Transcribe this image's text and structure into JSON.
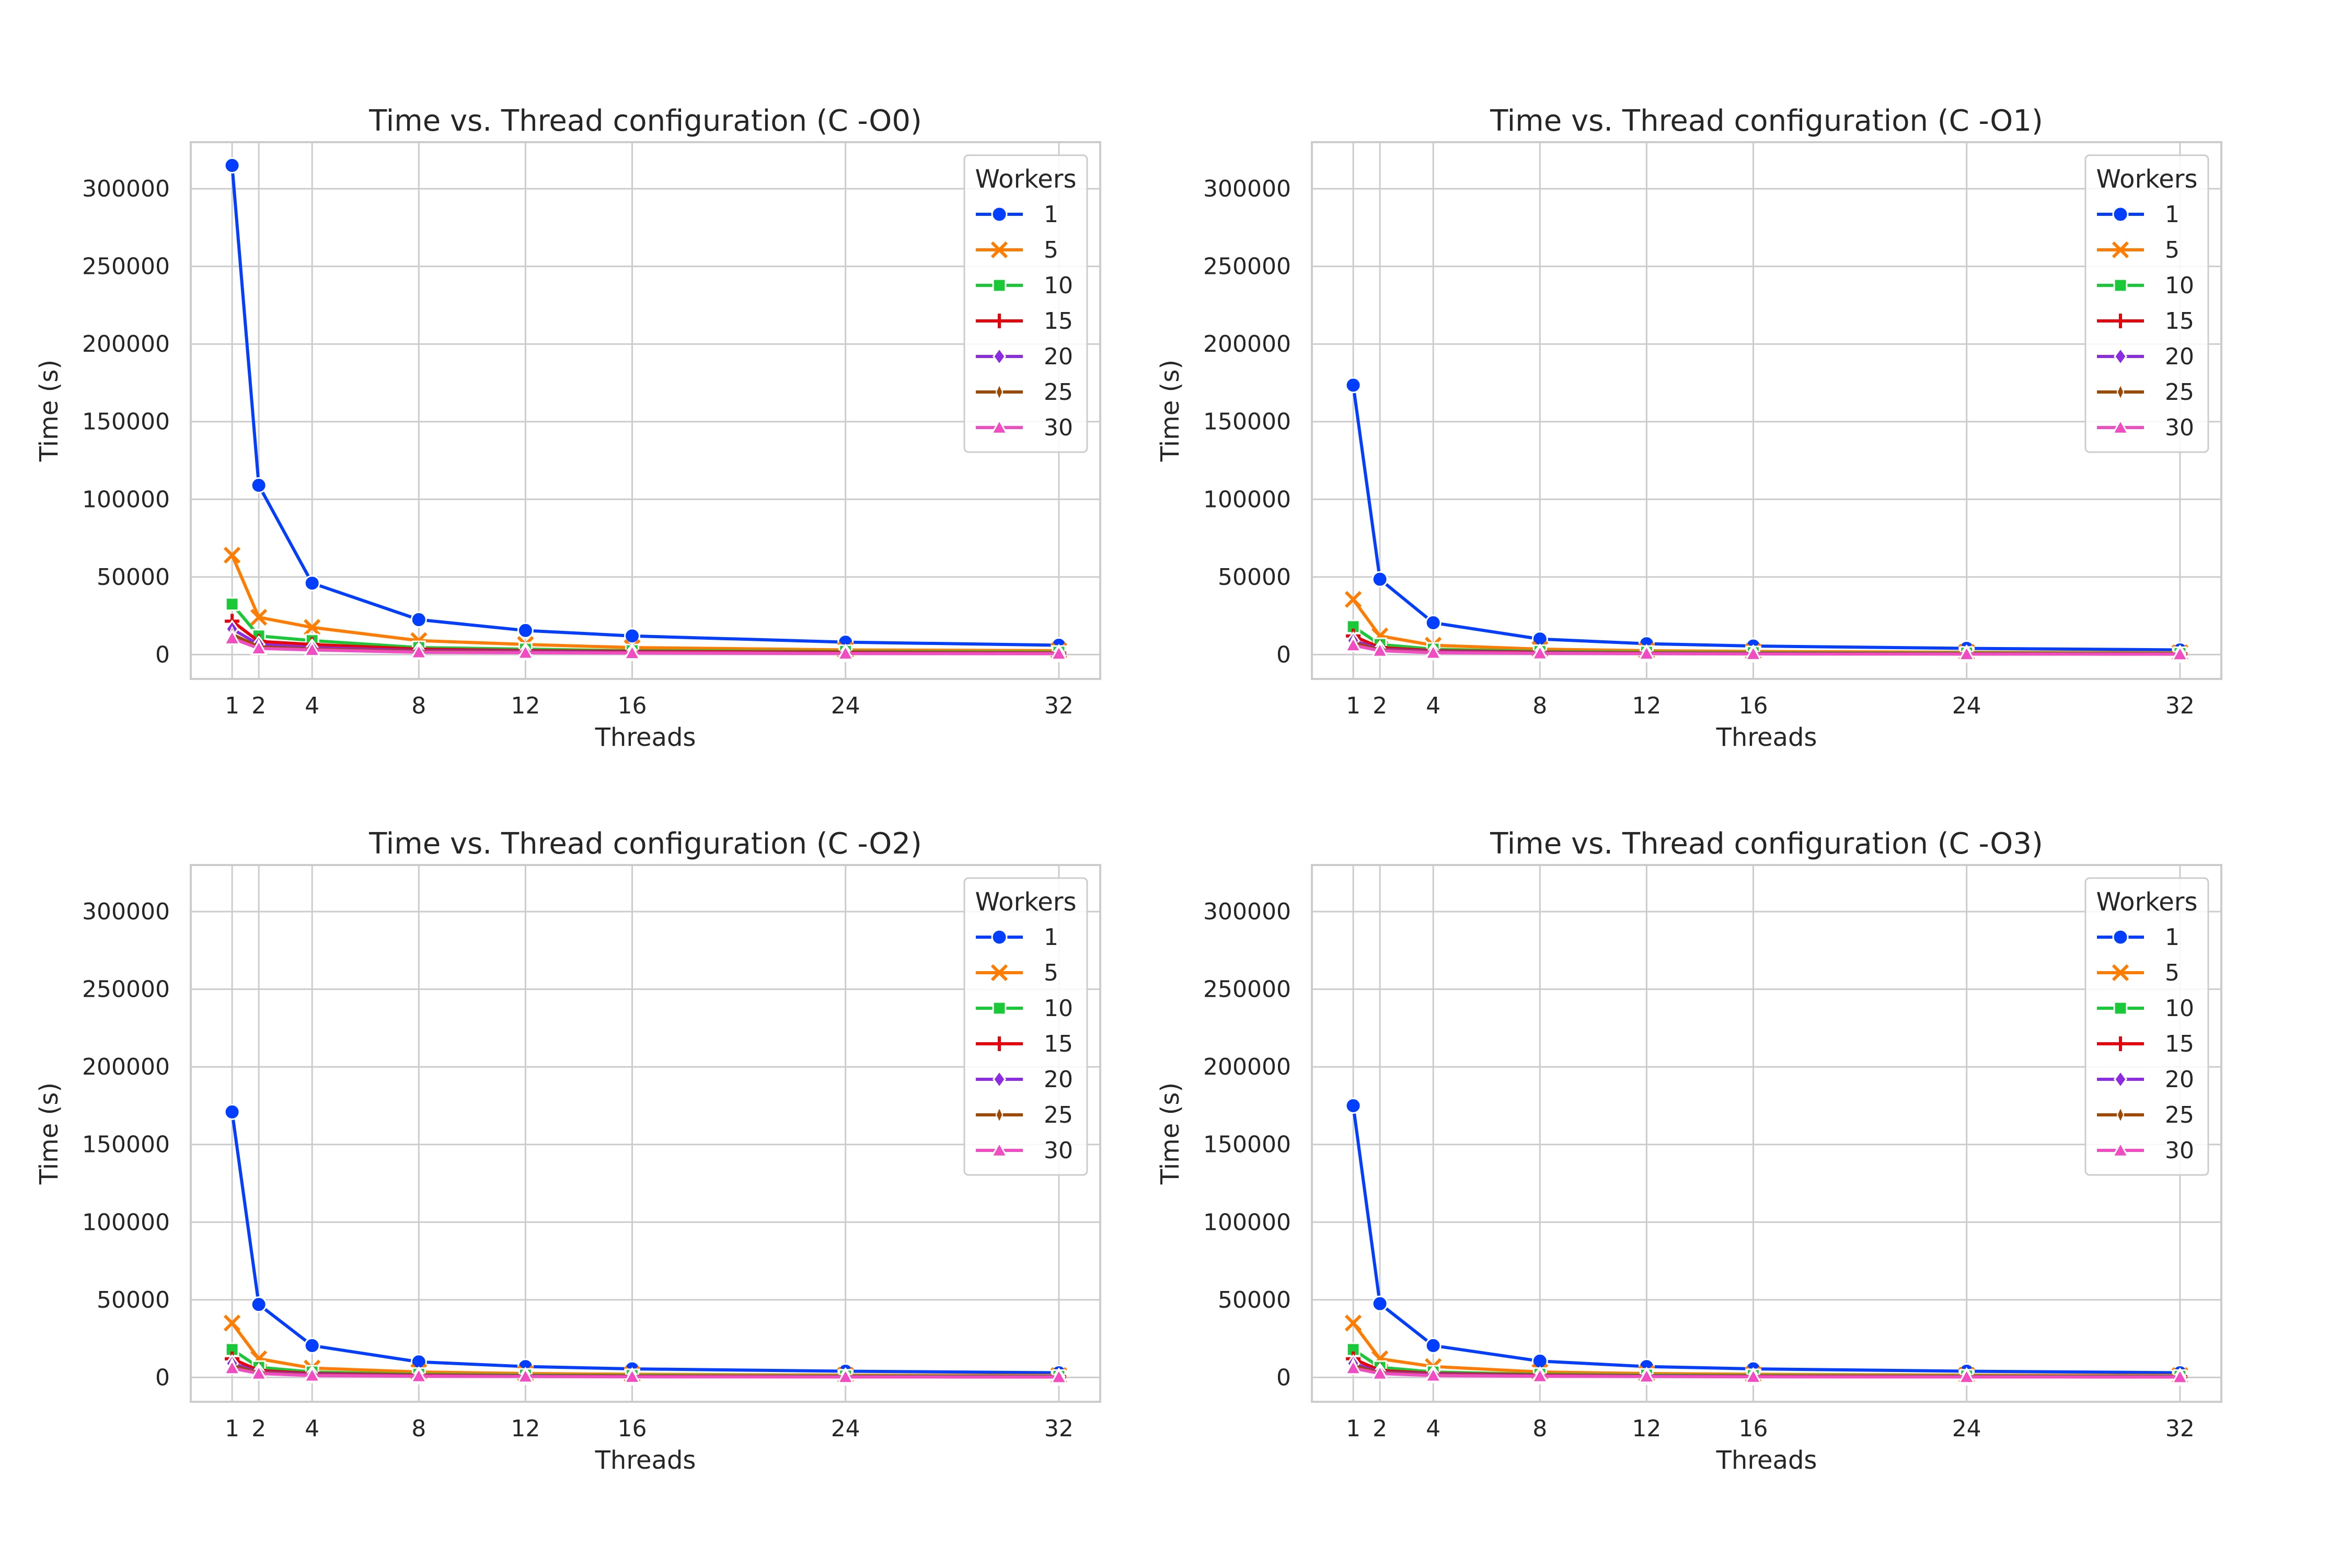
{
  "figure": {
    "legend_title": "Workers",
    "xlabel": "Threads",
    "ylabel": "Time (s)"
  },
  "chart_data": [
    {
      "type": "line",
      "title": "Time vs. Thread configuration (C -O0)",
      "xlabel": "Threads",
      "ylabel": "Time (s)",
      "x": [
        1,
        2,
        4,
        8,
        12,
        16,
        24,
        32
      ],
      "xticks": [
        1,
        2,
        4,
        8,
        12,
        16,
        24,
        32
      ],
      "yticks": [
        0,
        50000,
        100000,
        150000,
        200000,
        250000,
        300000
      ],
      "xlim": [
        -0.55,
        33.55
      ],
      "ylim": [
        -15700,
        330000
      ],
      "grid": true,
      "legend_position": "top-right",
      "legend_title": "Workers",
      "series": [
        {
          "name": "1",
          "color": "#023eff",
          "marker": "circle",
          "values": [
            315000,
            109000,
            46000,
            22500,
            15500,
            12000,
            8000,
            6000
          ]
        },
        {
          "name": "5",
          "color": "#ff7c00",
          "marker": "x",
          "values": [
            64000,
            24000,
            17500,
            9000,
            6500,
            4500,
            3000,
            2500
          ]
        },
        {
          "name": "10",
          "color": "#1ac938",
          "marker": "square",
          "values": [
            32500,
            12000,
            9000,
            4500,
            3500,
            2500,
            2000,
            1500
          ]
        },
        {
          "name": "15",
          "color": "#e8000b",
          "marker": "plus",
          "values": [
            21500,
            8500,
            6500,
            3500,
            2500,
            2000,
            1500,
            1000
          ]
        },
        {
          "name": "20",
          "color": "#8b2be2",
          "marker": "diamond",
          "values": [
            16500,
            6500,
            4500,
            2500,
            2000,
            1500,
            1000,
            800
          ]
        },
        {
          "name": "25",
          "color": "#9f4800",
          "marker": "star",
          "values": [
            13000,
            5000,
            3500,
            2000,
            1500,
            1200,
            900,
            700
          ]
        },
        {
          "name": "30",
          "color": "#f14cc1",
          "marker": "triangle",
          "values": [
            10500,
            4000,
            3000,
            1500,
            1200,
            1000,
            700,
            600
          ]
        }
      ]
    },
    {
      "type": "line",
      "title": "Time vs. Thread configuration (C -O1)",
      "xlabel": "Threads",
      "ylabel": "Time (s)",
      "x": [
        1,
        2,
        4,
        8,
        12,
        16,
        24,
        32
      ],
      "xticks": [
        1,
        2,
        4,
        8,
        12,
        16,
        24,
        32
      ],
      "yticks": [
        0,
        50000,
        100000,
        150000,
        200000,
        250000,
        300000
      ],
      "xlim": [
        -0.55,
        33.55
      ],
      "ylim": [
        -15700,
        330000
      ],
      "grid": true,
      "legend_position": "top-right",
      "legend_title": "Workers",
      "series": [
        {
          "name": "1",
          "color": "#023eff",
          "marker": "circle",
          "values": [
            173500,
            48500,
            20500,
            10000,
            7000,
            5500,
            4000,
            3000
          ]
        },
        {
          "name": "5",
          "color": "#ff7c00",
          "marker": "x",
          "values": [
            35500,
            12000,
            6000,
            3500,
            2500,
            2000,
            1500,
            1200
          ]
        },
        {
          "name": "10",
          "color": "#1ac938",
          "marker": "square",
          "values": [
            18000,
            6500,
            3500,
            2000,
            1500,
            1200,
            900,
            700
          ]
        },
        {
          "name": "15",
          "color": "#e8000b",
          "marker": "plus",
          "values": [
            12000,
            4500,
            2500,
            1500,
            1000,
            800,
            600,
            500
          ]
        },
        {
          "name": "20",
          "color": "#8b2be2",
          "marker": "diamond",
          "values": [
            9000,
            3500,
            2000,
            1200,
            800,
            600,
            500,
            400
          ]
        },
        {
          "name": "25",
          "color": "#9f4800",
          "marker": "star",
          "values": [
            7500,
            3000,
            1500,
            1000,
            700,
            500,
            400,
            300
          ]
        },
        {
          "name": "30",
          "color": "#f14cc1",
          "marker": "triangle",
          "values": [
            6000,
            2500,
            1200,
            800,
            600,
            400,
            300,
            250
          ]
        }
      ]
    },
    {
      "type": "line",
      "title": "Time vs. Thread configuration (C -O2)",
      "xlabel": "Threads",
      "ylabel": "Time (s)",
      "x": [
        1,
        2,
        4,
        8,
        12,
        16,
        24,
        32
      ],
      "xticks": [
        1,
        2,
        4,
        8,
        12,
        16,
        24,
        32
      ],
      "yticks": [
        0,
        50000,
        100000,
        150000,
        200000,
        250000,
        300000
      ],
      "xlim": [
        -0.55,
        33.55
      ],
      "ylim": [
        -15700,
        330000
      ],
      "grid": true,
      "legend_position": "top-right",
      "legend_title": "Workers",
      "series": [
        {
          "name": "1",
          "color": "#023eff",
          "marker": "circle",
          "values": [
            171000,
            47000,
            20500,
            10000,
            7000,
            5500,
            4000,
            3000
          ]
        },
        {
          "name": "5",
          "color": "#ff7c00",
          "marker": "x",
          "values": [
            35000,
            12000,
            6000,
            3500,
            2500,
            2000,
            1500,
            1200
          ]
        },
        {
          "name": "10",
          "color": "#1ac938",
          "marker": "square",
          "values": [
            18000,
            6500,
            3500,
            2000,
            1500,
            1200,
            900,
            700
          ]
        },
        {
          "name": "15",
          "color": "#e8000b",
          "marker": "plus",
          "values": [
            12000,
            4500,
            2500,
            1500,
            1000,
            800,
            600,
            500
          ]
        },
        {
          "name": "20",
          "color": "#8b2be2",
          "marker": "diamond",
          "values": [
            9000,
            3500,
            2000,
            1200,
            800,
            600,
            500,
            400
          ]
        },
        {
          "name": "25",
          "color": "#9f4800",
          "marker": "star",
          "values": [
            7500,
            3000,
            1500,
            1000,
            700,
            500,
            400,
            300
          ]
        },
        {
          "name": "30",
          "color": "#f14cc1",
          "marker": "triangle",
          "values": [
            6000,
            2500,
            1200,
            800,
            600,
            400,
            300,
            250
          ]
        }
      ]
    },
    {
      "type": "line",
      "title": "Time vs. Thread configuration (C -O3)",
      "xlabel": "Threads",
      "ylabel": "Time (s)",
      "x": [
        1,
        2,
        4,
        8,
        12,
        16,
        24,
        32
      ],
      "xticks": [
        1,
        2,
        4,
        8,
        12,
        16,
        24,
        32
      ],
      "yticks": [
        0,
        50000,
        100000,
        150000,
        200000,
        250000,
        300000
      ],
      "xlim": [
        -0.55,
        33.55
      ],
      "ylim": [
        -15700,
        330000
      ],
      "grid": true,
      "legend_position": "top-right",
      "legend_title": "Workers",
      "series": [
        {
          "name": "1",
          "color": "#023eff",
          "marker": "circle",
          "values": [
            175000,
            47500,
            20500,
            10500,
            7000,
            5500,
            4000,
            3000
          ]
        },
        {
          "name": "5",
          "color": "#ff7c00",
          "marker": "x",
          "values": [
            35000,
            12000,
            7000,
            3500,
            2500,
            2000,
            1500,
            1200
          ]
        },
        {
          "name": "10",
          "color": "#1ac938",
          "marker": "square",
          "values": [
            18000,
            6500,
            3500,
            2000,
            1500,
            1200,
            900,
            700
          ]
        },
        {
          "name": "15",
          "color": "#e8000b",
          "marker": "plus",
          "values": [
            12000,
            4500,
            2500,
            1500,
            1000,
            800,
            600,
            500
          ]
        },
        {
          "name": "20",
          "color": "#8b2be2",
          "marker": "diamond",
          "values": [
            9000,
            3500,
            2000,
            1200,
            800,
            600,
            500,
            400
          ]
        },
        {
          "name": "25",
          "color": "#9f4800",
          "marker": "star",
          "values": [
            7500,
            3000,
            1500,
            1000,
            700,
            500,
            400,
            300
          ]
        },
        {
          "name": "30",
          "color": "#f14cc1",
          "marker": "triangle",
          "values": [
            6000,
            2500,
            1200,
            800,
            600,
            400,
            300,
            250
          ]
        }
      ]
    }
  ]
}
